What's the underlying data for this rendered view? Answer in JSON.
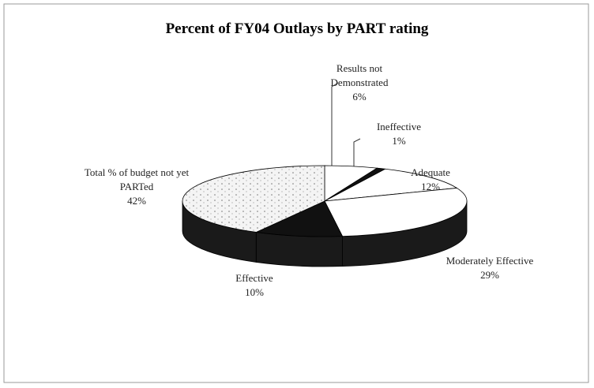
{
  "chart_data": {
    "type": "pie3d",
    "title": "Percent of FY04 Outlays by PART rating",
    "categories": [
      "Results not Demonstrated",
      "Ineffective",
      "Adequate",
      "Moderately Effective",
      "Effective",
      "Total % of budget not yet PARTed"
    ],
    "values": [
      6,
      1,
      12,
      29,
      10,
      42
    ],
    "value_labels": [
      "6%",
      "1%",
      "12%",
      "29%",
      "10%",
      "42%"
    ],
    "colors": [
      "#ffffff",
      "#111111",
      "#ffffff",
      "#ffffff",
      "#111111",
      "#f2f2f2"
    ]
  }
}
